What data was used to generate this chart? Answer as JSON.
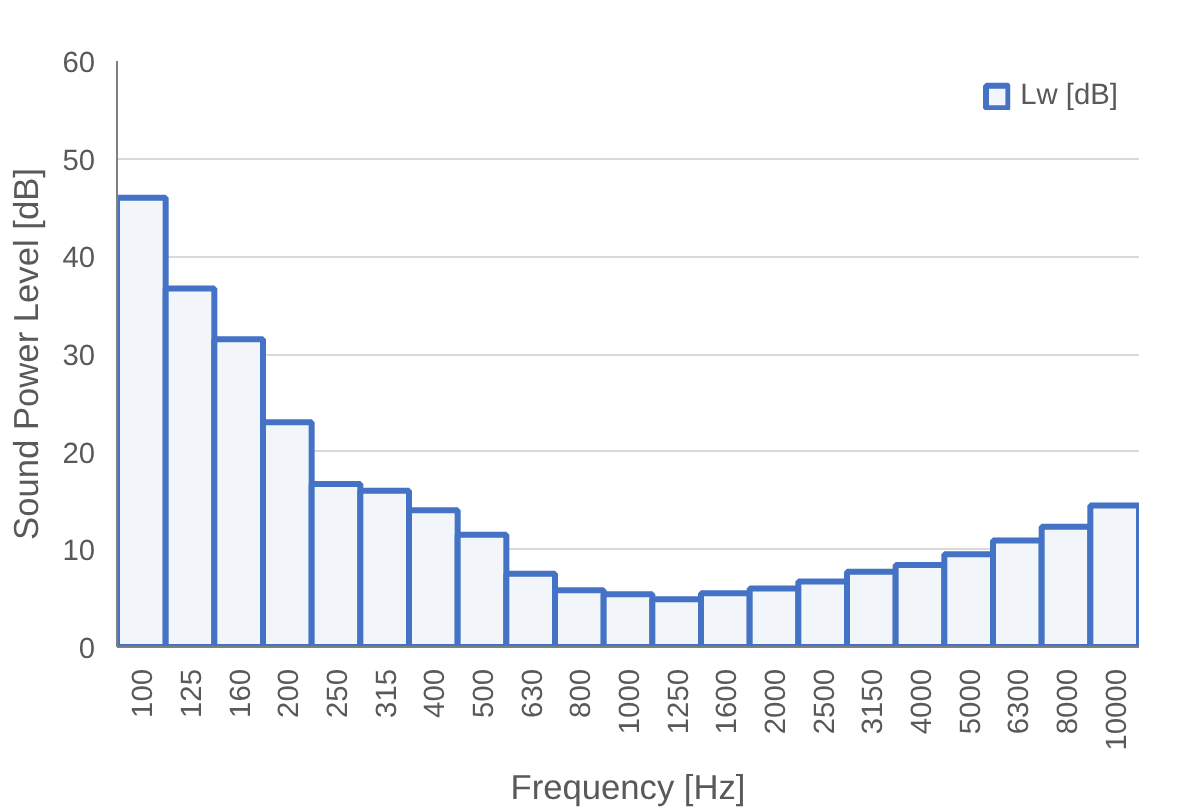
{
  "chart_data": {
    "type": "bar",
    "xlabel": "Frequency [Hz]",
    "ylabel": "Sound Power Level [dB]",
    "categories": [
      "100",
      "125",
      "160",
      "200",
      "250",
      "315",
      "400",
      "500",
      "630",
      "800",
      "1000",
      "1250",
      "1600",
      "2000",
      "2500",
      "3150",
      "4000",
      "5000",
      "6300",
      "8000",
      "10000"
    ],
    "series": [
      {
        "name": "Lw [dB]",
        "color": "#4472c4",
        "values": [
          46,
          36.7,
          31.5,
          23,
          16.7,
          16,
          14,
          11.5,
          7.5,
          5.8,
          5.4,
          4.9,
          5.5,
          6,
          6.7,
          7.7,
          8.4,
          9.5,
          10.9,
          12.3,
          14.5
        ]
      }
    ],
    "ylim": [
      0,
      60
    ],
    "yticks": [
      0,
      10,
      20,
      30,
      40,
      50,
      60
    ],
    "grid": "y",
    "legend": "top right"
  }
}
